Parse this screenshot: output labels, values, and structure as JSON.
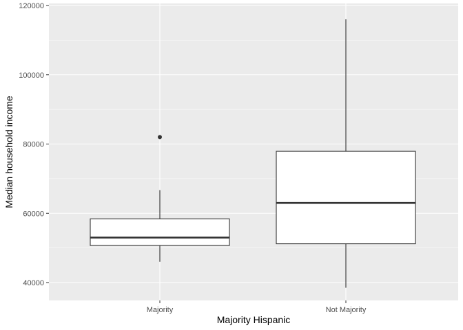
{
  "chart_data": {
    "type": "boxplot",
    "xlabel": "Majority Hispanic",
    "ylabel": "Median household income",
    "categories": [
      "Majority",
      "Not Majority"
    ],
    "ylim": [
      35000,
      120000
    ],
    "yticks": [
      40000,
      60000,
      80000,
      100000,
      120000
    ],
    "ytick_labels": [
      "40000",
      "60000",
      "80000",
      "100000",
      "120000"
    ],
    "grid": true,
    "boxes": [
      {
        "category": "Majority",
        "whisker_low": 46000,
        "q1": 50700,
        "median": 53000,
        "q3": 58400,
        "whisker_high": 66700,
        "outliers": [
          82000
        ]
      },
      {
        "category": "Not Majority",
        "whisker_low": 38500,
        "q1": 51200,
        "median": 63000,
        "q3": 77900,
        "whisker_high": 116000,
        "outliers": []
      }
    ]
  },
  "colors": {
    "panel_background": "#ebebeb",
    "gridline": "#ffffff",
    "box_fill": "#ffffff",
    "box_stroke": "#333333",
    "tick_text": "#4d4d4d",
    "axis_title": "#000000"
  }
}
